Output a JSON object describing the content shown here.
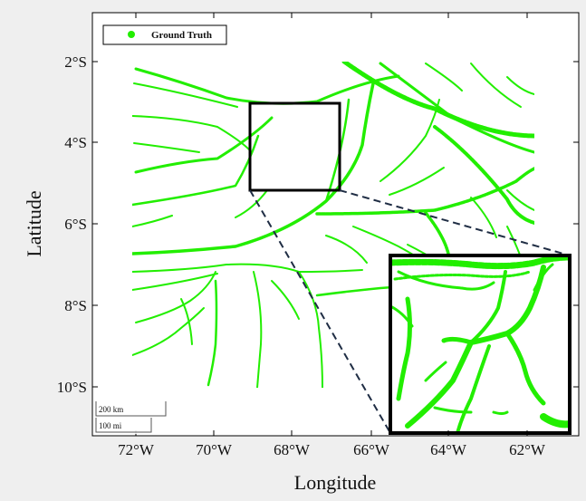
{
  "legend": {
    "label": "Ground Truth",
    "marker_color": "#22ee00"
  },
  "axes": {
    "xlabel": "Longitude",
    "ylabel": "Latitude",
    "x_ticks": [
      "72°W",
      "70°W",
      "68°W",
      "66°W",
      "64°W",
      "62°W"
    ],
    "y_ticks": [
      "2°S",
      "4°S",
      "6°S",
      "8°S",
      "10°S"
    ]
  },
  "scale_bar": {
    "km_label": "200 km",
    "mi_label": "100 mi"
  },
  "colors": {
    "river": "#22ee00",
    "frame": "#000000",
    "background": "#efefef",
    "plot_background": "#ffffff",
    "zoom_line": "#1f2d44"
  }
}
